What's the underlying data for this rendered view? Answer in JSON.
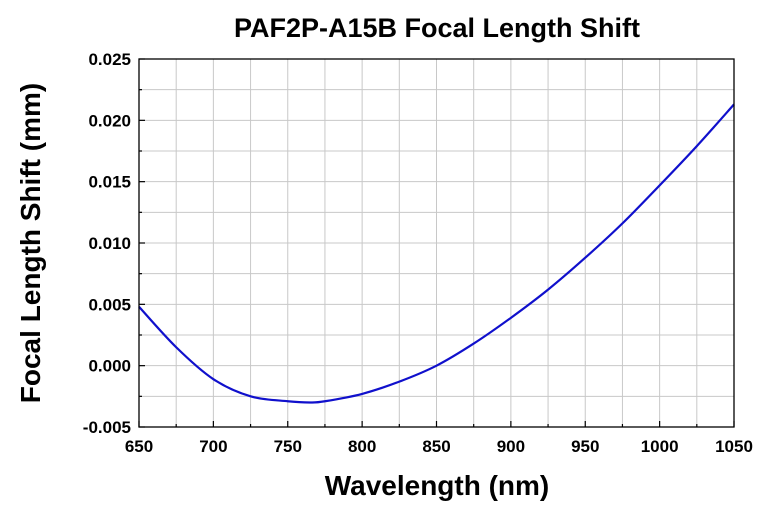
{
  "chart_data": {
    "type": "line",
    "title": "PAF2P-A15B Focal Length Shift",
    "xlabel": "Wavelength (nm)",
    "ylabel": "Focal Length Shift (mm)",
    "xlim": [
      650,
      1050
    ],
    "ylim": [
      -0.005,
      0.025
    ],
    "xticks": [
      "650",
      "700",
      "750",
      "800",
      "850",
      "900",
      "950",
      "1000",
      "1050"
    ],
    "yticks": [
      "-0.005",
      "0.000",
      "0.005",
      "0.010",
      "0.015",
      "0.020",
      "0.025"
    ],
    "grid": true,
    "legend": "none",
    "series": [
      {
        "color": "#1010cc",
        "x": [
          650,
          675,
          700,
          725,
          750,
          765,
          775,
          800,
          825,
          850,
          875,
          900,
          925,
          950,
          975,
          1000,
          1025,
          1050
        ],
        "y": [
          0.0048,
          0.0015,
          -0.0011,
          -0.0025,
          -0.0029,
          -0.003,
          -0.0029,
          -0.0023,
          -0.0013,
          0.0,
          0.0018,
          0.0039,
          0.0062,
          0.0088,
          0.0116,
          0.0147,
          0.0179,
          0.0213
        ]
      }
    ]
  }
}
